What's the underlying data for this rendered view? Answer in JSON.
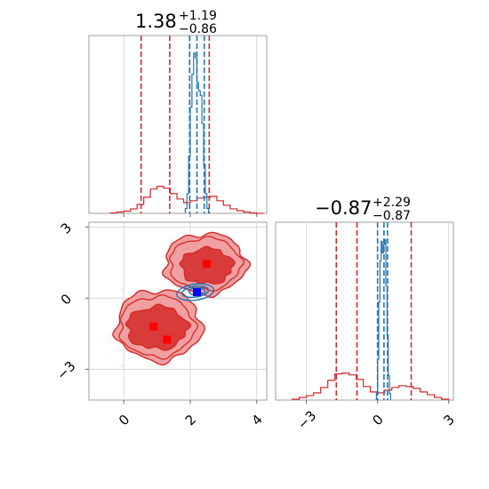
{
  "chart_data": [
    {
      "panel": "marginal-x",
      "type": "histogram",
      "title": {
        "median": "1.38",
        "plus": "+1.19",
        "minus": "−0.86"
      },
      "xlim": [
        -1.05,
        4.3
      ],
      "grid": true,
      "series": [
        {
          "color": "#d62728",
          "bin_edges": [
            -0.4,
            -0.2,
            0.0,
            0.2,
            0.4,
            0.6,
            0.8,
            1.0,
            1.2,
            1.4,
            1.6,
            1.8,
            2.0,
            2.2,
            2.4,
            2.6,
            2.8,
            3.0,
            3.2,
            3.4,
            3.6,
            3.8,
            4.0,
            4.2
          ],
          "heights": [
            0.005,
            0.015,
            0.025,
            0.05,
            0.1,
            0.18,
            0.27,
            0.3,
            0.28,
            0.22,
            0.16,
            0.12,
            0.14,
            0.17,
            0.18,
            0.19,
            0.14,
            0.09,
            0.05,
            0.03,
            0.015,
            0.005,
            0.0
          ],
          "quantiles": [
            0.52,
            1.38,
            2.57
          ]
        },
        {
          "color": "#1f77b4",
          "bin_edges": [
            1.85,
            1.9,
            1.95,
            2.0,
            2.05,
            2.1,
            2.15,
            2.2,
            2.25,
            2.3,
            2.35,
            2.4,
            2.45,
            2.5,
            2.55
          ],
          "heights": [
            0.03,
            0.12,
            0.35,
            0.65,
            0.85,
            0.98,
            0.95,
            0.8,
            0.75,
            0.72,
            0.55,
            0.3,
            0.12,
            0.03
          ],
          "quantiles": [
            1.98,
            2.2,
            2.42
          ]
        }
      ]
    },
    {
      "panel": "marginal-y",
      "type": "histogram",
      "title": {
        "median": "−0.87",
        "plus": "+2.29",
        "minus": "−0.87"
      },
      "xlim": [
        -4.3,
        3.2
      ],
      "xticks": [
        "−3",
        "0",
        "3"
      ],
      "grid": true,
      "series": [
        {
          "color": "#d62728",
          "bin_edges": [
            -3.6,
            -3.3,
            -3.0,
            -2.7,
            -2.4,
            -2.1,
            -1.8,
            -1.5,
            -1.2,
            -0.9,
            -0.6,
            -0.3,
            0.0,
            0.3,
            0.6,
            0.9,
            1.2,
            1.5,
            1.8,
            2.1,
            2.4,
            2.7,
            3.0
          ],
          "heights": [
            0.01,
            0.03,
            0.05,
            0.08,
            0.14,
            0.22,
            0.29,
            0.3,
            0.28,
            0.23,
            0.15,
            0.09,
            0.08,
            0.11,
            0.14,
            0.16,
            0.15,
            0.13,
            0.09,
            0.06,
            0.03,
            0.01
          ],
          "quantiles": [
            -1.74,
            -0.87,
            1.42
          ]
        },
        {
          "color": "#1f77b4",
          "bin_edges": [
            -0.05,
            0.0,
            0.05,
            0.1,
            0.15,
            0.2,
            0.25,
            0.3,
            0.35,
            0.4,
            0.45,
            0.5,
            0.55
          ],
          "heights": [
            0.05,
            0.25,
            0.6,
            0.85,
            0.97,
            0.9,
            0.95,
            0.98,
            0.7,
            0.4,
            0.15,
            0.04
          ],
          "quantiles": [
            0.0,
            0.27,
            0.42
          ]
        }
      ]
    },
    {
      "panel": "joint",
      "type": "contour",
      "xlim": [
        -1.05,
        4.3
      ],
      "ylim": [
        -4.3,
        3.2
      ],
      "xticks": [
        "0",
        "2",
        "4"
      ],
      "yticks": [
        "3",
        "0",
        "−3"
      ],
      "grid": true,
      "red_markers": [
        [
          0.9,
          -1.2
        ],
        [
          1.3,
          -1.75
        ],
        [
          2.5,
          1.45
        ]
      ],
      "blue_marker": [
        2.2,
        0.25
      ],
      "red_color": "#d62728",
      "red_fill_outer": "#f0a0a0",
      "blue_color": "#1f77b4"
    }
  ]
}
